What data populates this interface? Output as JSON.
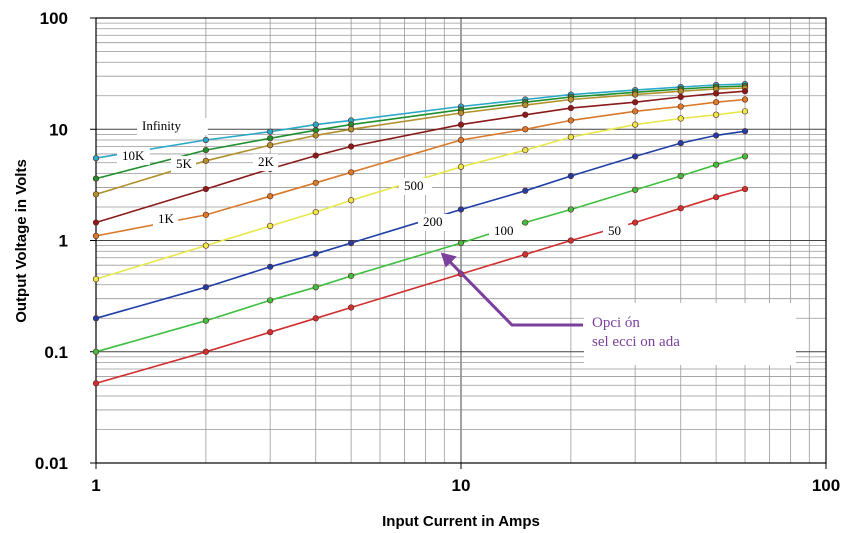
{
  "chart_data": {
    "type": "line",
    "title": "",
    "xlabel": "Input Current in Amps",
    "ylabel": "Output Voltage in Volts",
    "xscale": "log",
    "yscale": "log",
    "xlim": [
      1,
      100
    ],
    "ylim": [
      0.01,
      100
    ],
    "grid": true,
    "x_ticks": [
      "1",
      "10",
      "100"
    ],
    "y_ticks": [
      "100",
      "10",
      "1",
      "0.1",
      "0.01"
    ],
    "x": [
      1,
      2,
      3,
      4,
      5,
      10,
      15,
      20,
      30,
      40,
      50,
      60
    ],
    "series": [
      {
        "name": "Infinity",
        "color": "#2aa8c8",
        "values": [
          5.5,
          8,
          9.5,
          11,
          12,
          16,
          18.5,
          20.5,
          22.5,
          24,
          25,
          25.5
        ]
      },
      {
        "name": "10K",
        "color": "#1f8f2e",
        "values": [
          3.6,
          6.5,
          8.3,
          9.8,
          11,
          15,
          17.5,
          19.5,
          21.5,
          23,
          24,
          24.5
        ]
      },
      {
        "name": "5K",
        "color": "#b0922c",
        "values": [
          2.6,
          5.2,
          7.2,
          8.8,
          10,
          14,
          16.5,
          18.5,
          20.5,
          22,
          23,
          23.5
        ]
      },
      {
        "name": "2K",
        "color": "#8b1a1a",
        "values": [
          1.45,
          2.9,
          4.4,
          5.8,
          7,
          11,
          13.5,
          15.5,
          17.5,
          19.5,
          21,
          22
        ]
      },
      {
        "name": "1K",
        "color": "#d97a2a",
        "values": [
          1.1,
          1.7,
          2.5,
          3.3,
          4.1,
          8,
          10,
          12,
          14.5,
          16,
          17.5,
          18.5
        ]
      },
      {
        "name": "500",
        "color": "#e8e84a",
        "values": [
          0.45,
          0.9,
          1.35,
          1.8,
          2.3,
          4.6,
          6.5,
          8.5,
          11,
          12.5,
          13.5,
          14.5
        ]
      },
      {
        "name": "200",
        "color": "#1f3fa8",
        "values": [
          0.2,
          0.38,
          0.58,
          0.76,
          0.95,
          1.9,
          2.8,
          3.8,
          5.7,
          7.5,
          8.8,
          9.6
        ]
      },
      {
        "name": "100",
        "color": "#3fbf3f",
        "values": [
          0.1,
          0.19,
          0.29,
          0.38,
          0.48,
          0.95,
          1.45,
          1.9,
          2.85,
          3.8,
          4.8,
          5.7
        ]
      },
      {
        "name": "50",
        "color": "#d03030",
        "values": [
          0.052,
          0.1,
          0.15,
          0.2,
          0.25,
          0.5,
          0.75,
          1.0,
          1.45,
          1.95,
          2.45,
          2.9
        ]
      }
    ],
    "annotation": {
      "line1": "Opci ón",
      "line2": "sel ecci on ada",
      "color": "#7b3f9e",
      "arrow_to_x": 8.8,
      "arrow_to_y": 0.78
    }
  }
}
